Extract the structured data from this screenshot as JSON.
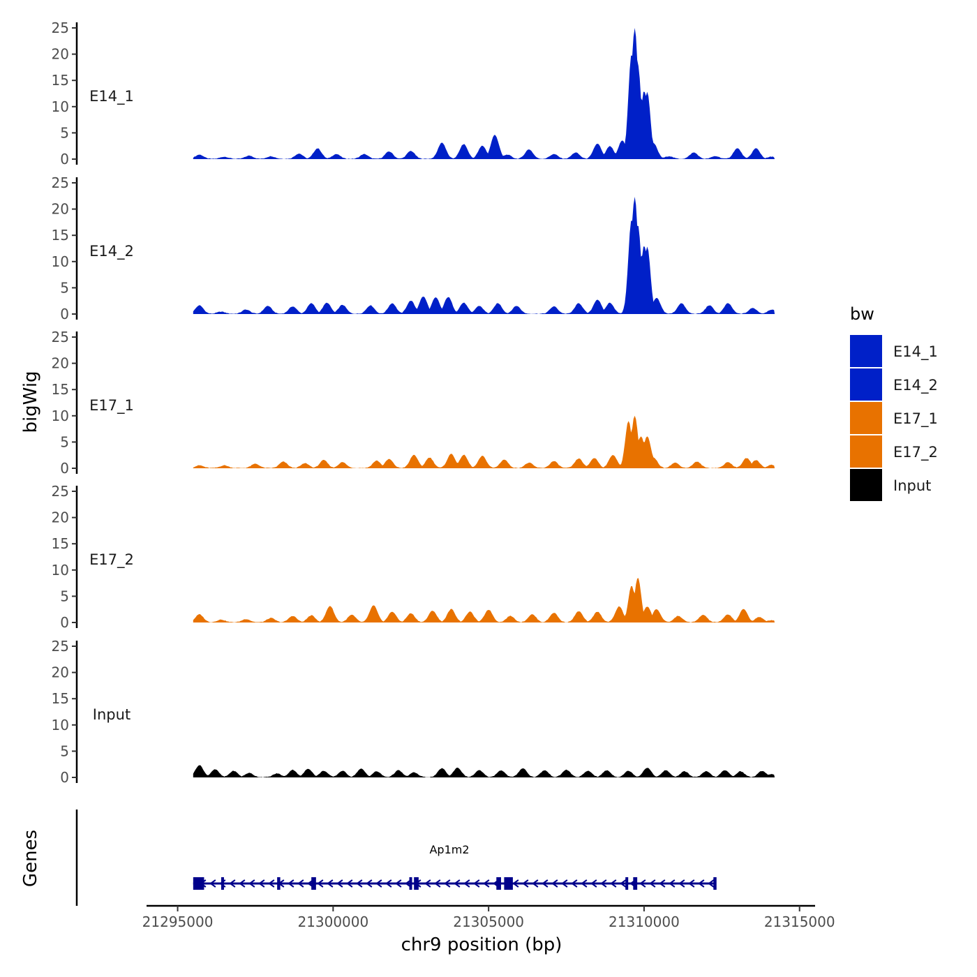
{
  "chart_data": {
    "type": "area",
    "ylabel": "bigWig",
    "xlabel": "chr9 position (bp)",
    "xlim": [
      21294000,
      21315500
    ],
    "ylim": [
      0,
      25
    ],
    "y_ticks": [
      0,
      5,
      10,
      15,
      20,
      25
    ],
    "x_ticks": [
      21295000,
      21300000,
      21305000,
      21310000,
      21315000
    ],
    "x_tick_labels": [
      "21295000",
      "21300000",
      "21305000",
      "21310000",
      "21315000"
    ],
    "data_range": [
      21295500,
      21314200
    ],
    "tracks": [
      {
        "name": "E14_1",
        "label": "E14_1",
        "color": "#0020c8",
        "peaks": [
          [
            21295700,
            0.8
          ],
          [
            21296500,
            0.4
          ],
          [
            21297300,
            0.6
          ],
          [
            21298000,
            0.5
          ],
          [
            21298900,
            1.0
          ],
          [
            21299500,
            2.0
          ],
          [
            21300100,
            0.9
          ],
          [
            21301000,
            0.9
          ],
          [
            21301800,
            1.4
          ],
          [
            21302500,
            1.5
          ],
          [
            21303500,
            3.1
          ],
          [
            21304200,
            2.8
          ],
          [
            21304800,
            2.5
          ],
          [
            21305200,
            4.6
          ],
          [
            21305600,
            0.8
          ],
          [
            21306300,
            1.8
          ],
          [
            21307100,
            0.9
          ],
          [
            21307800,
            1.2
          ],
          [
            21308500,
            2.9
          ],
          [
            21308900,
            2.4
          ],
          [
            21309300,
            3.5
          ],
          [
            21309600,
            20
          ],
          [
            21309700,
            25
          ],
          [
            21309800,
            18
          ],
          [
            21310000,
            13
          ],
          [
            21310100,
            12.8
          ],
          [
            21310300,
            3
          ],
          [
            21310800,
            0.5
          ],
          [
            21311600,
            1.2
          ],
          [
            21312300,
            0.5
          ],
          [
            21313000,
            2.0
          ],
          [
            21313600,
            2.0
          ],
          [
            21314100,
            0.4
          ]
        ]
      },
      {
        "name": "E14_2",
        "label": "E14_2",
        "color": "#0020c8",
        "peaks": [
          [
            21295700,
            1.6
          ],
          [
            21296400,
            0.4
          ],
          [
            21297200,
            0.8
          ],
          [
            21297900,
            1.5
          ],
          [
            21298700,
            1.4
          ],
          [
            21299300,
            2.0
          ],
          [
            21299800,
            2.1
          ],
          [
            21300300,
            1.7
          ],
          [
            21301200,
            1.6
          ],
          [
            21301900,
            2.0
          ],
          [
            21302500,
            2.5
          ],
          [
            21302900,
            3.3
          ],
          [
            21303300,
            3.1
          ],
          [
            21303700,
            3.2
          ],
          [
            21304200,
            2.1
          ],
          [
            21304700,
            1.5
          ],
          [
            21305300,
            2.0
          ],
          [
            21305900,
            1.5
          ],
          [
            21307100,
            1.4
          ],
          [
            21307900,
            2.0
          ],
          [
            21308500,
            2.7
          ],
          [
            21308900,
            2.1
          ],
          [
            21309600,
            18
          ],
          [
            21309700,
            22.3
          ],
          [
            21309800,
            17
          ],
          [
            21310000,
            13
          ],
          [
            21310100,
            12.8
          ],
          [
            21310400,
            3
          ],
          [
            21311200,
            2.0
          ],
          [
            21312100,
            1.6
          ],
          [
            21312700,
            2.0
          ],
          [
            21313500,
            1.1
          ],
          [
            21314100,
            0.8
          ]
        ]
      },
      {
        "name": "E17_1",
        "label": "E17_1",
        "color": "#e87200",
        "peaks": [
          [
            21295700,
            0.5
          ],
          [
            21296500,
            0.5
          ],
          [
            21297500,
            0.8
          ],
          [
            21298400,
            1.2
          ],
          [
            21299100,
            0.9
          ],
          [
            21299700,
            1.5
          ],
          [
            21300300,
            1.1
          ],
          [
            21301400,
            1.4
          ],
          [
            21301800,
            1.7
          ],
          [
            21302600,
            2.5
          ],
          [
            21303100,
            2.0
          ],
          [
            21303800,
            2.7
          ],
          [
            21304200,
            2.5
          ],
          [
            21304800,
            2.3
          ],
          [
            21305500,
            1.6
          ],
          [
            21306300,
            1.0
          ],
          [
            21307100,
            1.3
          ],
          [
            21307900,
            1.8
          ],
          [
            21308400,
            1.9
          ],
          [
            21309000,
            2.5
          ],
          [
            21309500,
            9
          ],
          [
            21309700,
            10
          ],
          [
            21309900,
            6
          ],
          [
            21310100,
            6
          ],
          [
            21310300,
            2
          ],
          [
            21311000,
            1.0
          ],
          [
            21311700,
            1.2
          ],
          [
            21312700,
            1.1
          ],
          [
            21313300,
            1.9
          ],
          [
            21313600,
            1.5
          ],
          [
            21314100,
            0.6
          ]
        ]
      },
      {
        "name": "E17_2",
        "label": "E17_2",
        "color": "#e87200",
        "peaks": [
          [
            21295700,
            1.5
          ],
          [
            21296400,
            0.5
          ],
          [
            21297200,
            0.6
          ],
          [
            21298000,
            0.8
          ],
          [
            21298700,
            1.2
          ],
          [
            21299300,
            1.3
          ],
          [
            21299900,
            3.1
          ],
          [
            21300600,
            1.4
          ],
          [
            21301300,
            3.2
          ],
          [
            21301900,
            2.0
          ],
          [
            21302500,
            1.7
          ],
          [
            21303200,
            2.2
          ],
          [
            21303800,
            2.5
          ],
          [
            21304400,
            2.0
          ],
          [
            21305000,
            2.4
          ],
          [
            21305700,
            1.2
          ],
          [
            21306400,
            1.5
          ],
          [
            21307100,
            1.8
          ],
          [
            21307900,
            2.1
          ],
          [
            21308500,
            2.0
          ],
          [
            21309200,
            3
          ],
          [
            21309600,
            7
          ],
          [
            21309800,
            8.5
          ],
          [
            21310100,
            3
          ],
          [
            21310400,
            2.5
          ],
          [
            21311100,
            1.2
          ],
          [
            21311900,
            1.4
          ],
          [
            21312700,
            1.5
          ],
          [
            21313200,
            2.5
          ],
          [
            21313700,
            1.0
          ],
          [
            21314100,
            0.4
          ]
        ]
      },
      {
        "name": "Input",
        "label": "Input",
        "color": "#000000",
        "peaks": [
          [
            21295700,
            2.3
          ],
          [
            21296200,
            1.5
          ],
          [
            21296800,
            1.2
          ],
          [
            21297300,
            0.8
          ],
          [
            21298200,
            0.7
          ],
          [
            21298700,
            1.4
          ],
          [
            21299200,
            1.6
          ],
          [
            21299700,
            1.2
          ],
          [
            21300300,
            1.2
          ],
          [
            21300900,
            1.6
          ],
          [
            21301400,
            1.1
          ],
          [
            21302100,
            1.3
          ],
          [
            21302600,
            0.9
          ],
          [
            21303500,
            1.7
          ],
          [
            21304000,
            1.8
          ],
          [
            21304700,
            1.3
          ],
          [
            21305400,
            1.3
          ],
          [
            21306100,
            1.7
          ],
          [
            21306800,
            1.3
          ],
          [
            21307500,
            1.4
          ],
          [
            21308200,
            1.2
          ],
          [
            21308800,
            1.3
          ],
          [
            21309500,
            1.2
          ],
          [
            21310100,
            1.8
          ],
          [
            21310700,
            1.3
          ],
          [
            21311300,
            1.1
          ],
          [
            21312000,
            1.1
          ],
          [
            21312600,
            1.3
          ],
          [
            21313100,
            1.1
          ],
          [
            21313800,
            1.2
          ],
          [
            21314100,
            0.6
          ]
        ]
      }
    ],
    "gene_panel": {
      "ylabel": "Genes",
      "gene_name": "Ap1m2",
      "color": "#00008b",
      "start": 21295500,
      "end": 21312300,
      "strand": "-",
      "exons": [
        [
          21295500,
          21295850
        ],
        [
          21296400,
          21296460
        ],
        [
          21298200,
          21298300
        ],
        [
          21299300,
          21299450
        ],
        [
          21302450,
          21302520
        ],
        [
          21302600,
          21302750
        ],
        [
          21305250,
          21305400
        ],
        [
          21305500,
          21305780
        ],
        [
          21309400,
          21309480
        ],
        [
          21309650,
          21309780
        ],
        [
          21312230,
          21312330
        ]
      ]
    },
    "legend": {
      "title": "bw",
      "position": "right",
      "items": [
        {
          "label": "E14_1",
          "color": "#0020c8"
        },
        {
          "label": "E14_2",
          "color": "#0020c8"
        },
        {
          "label": "E17_1",
          "color": "#e87200"
        },
        {
          "label": "E17_2",
          "color": "#e87200"
        },
        {
          "label": "Input",
          "color": "#000000"
        }
      ]
    }
  }
}
